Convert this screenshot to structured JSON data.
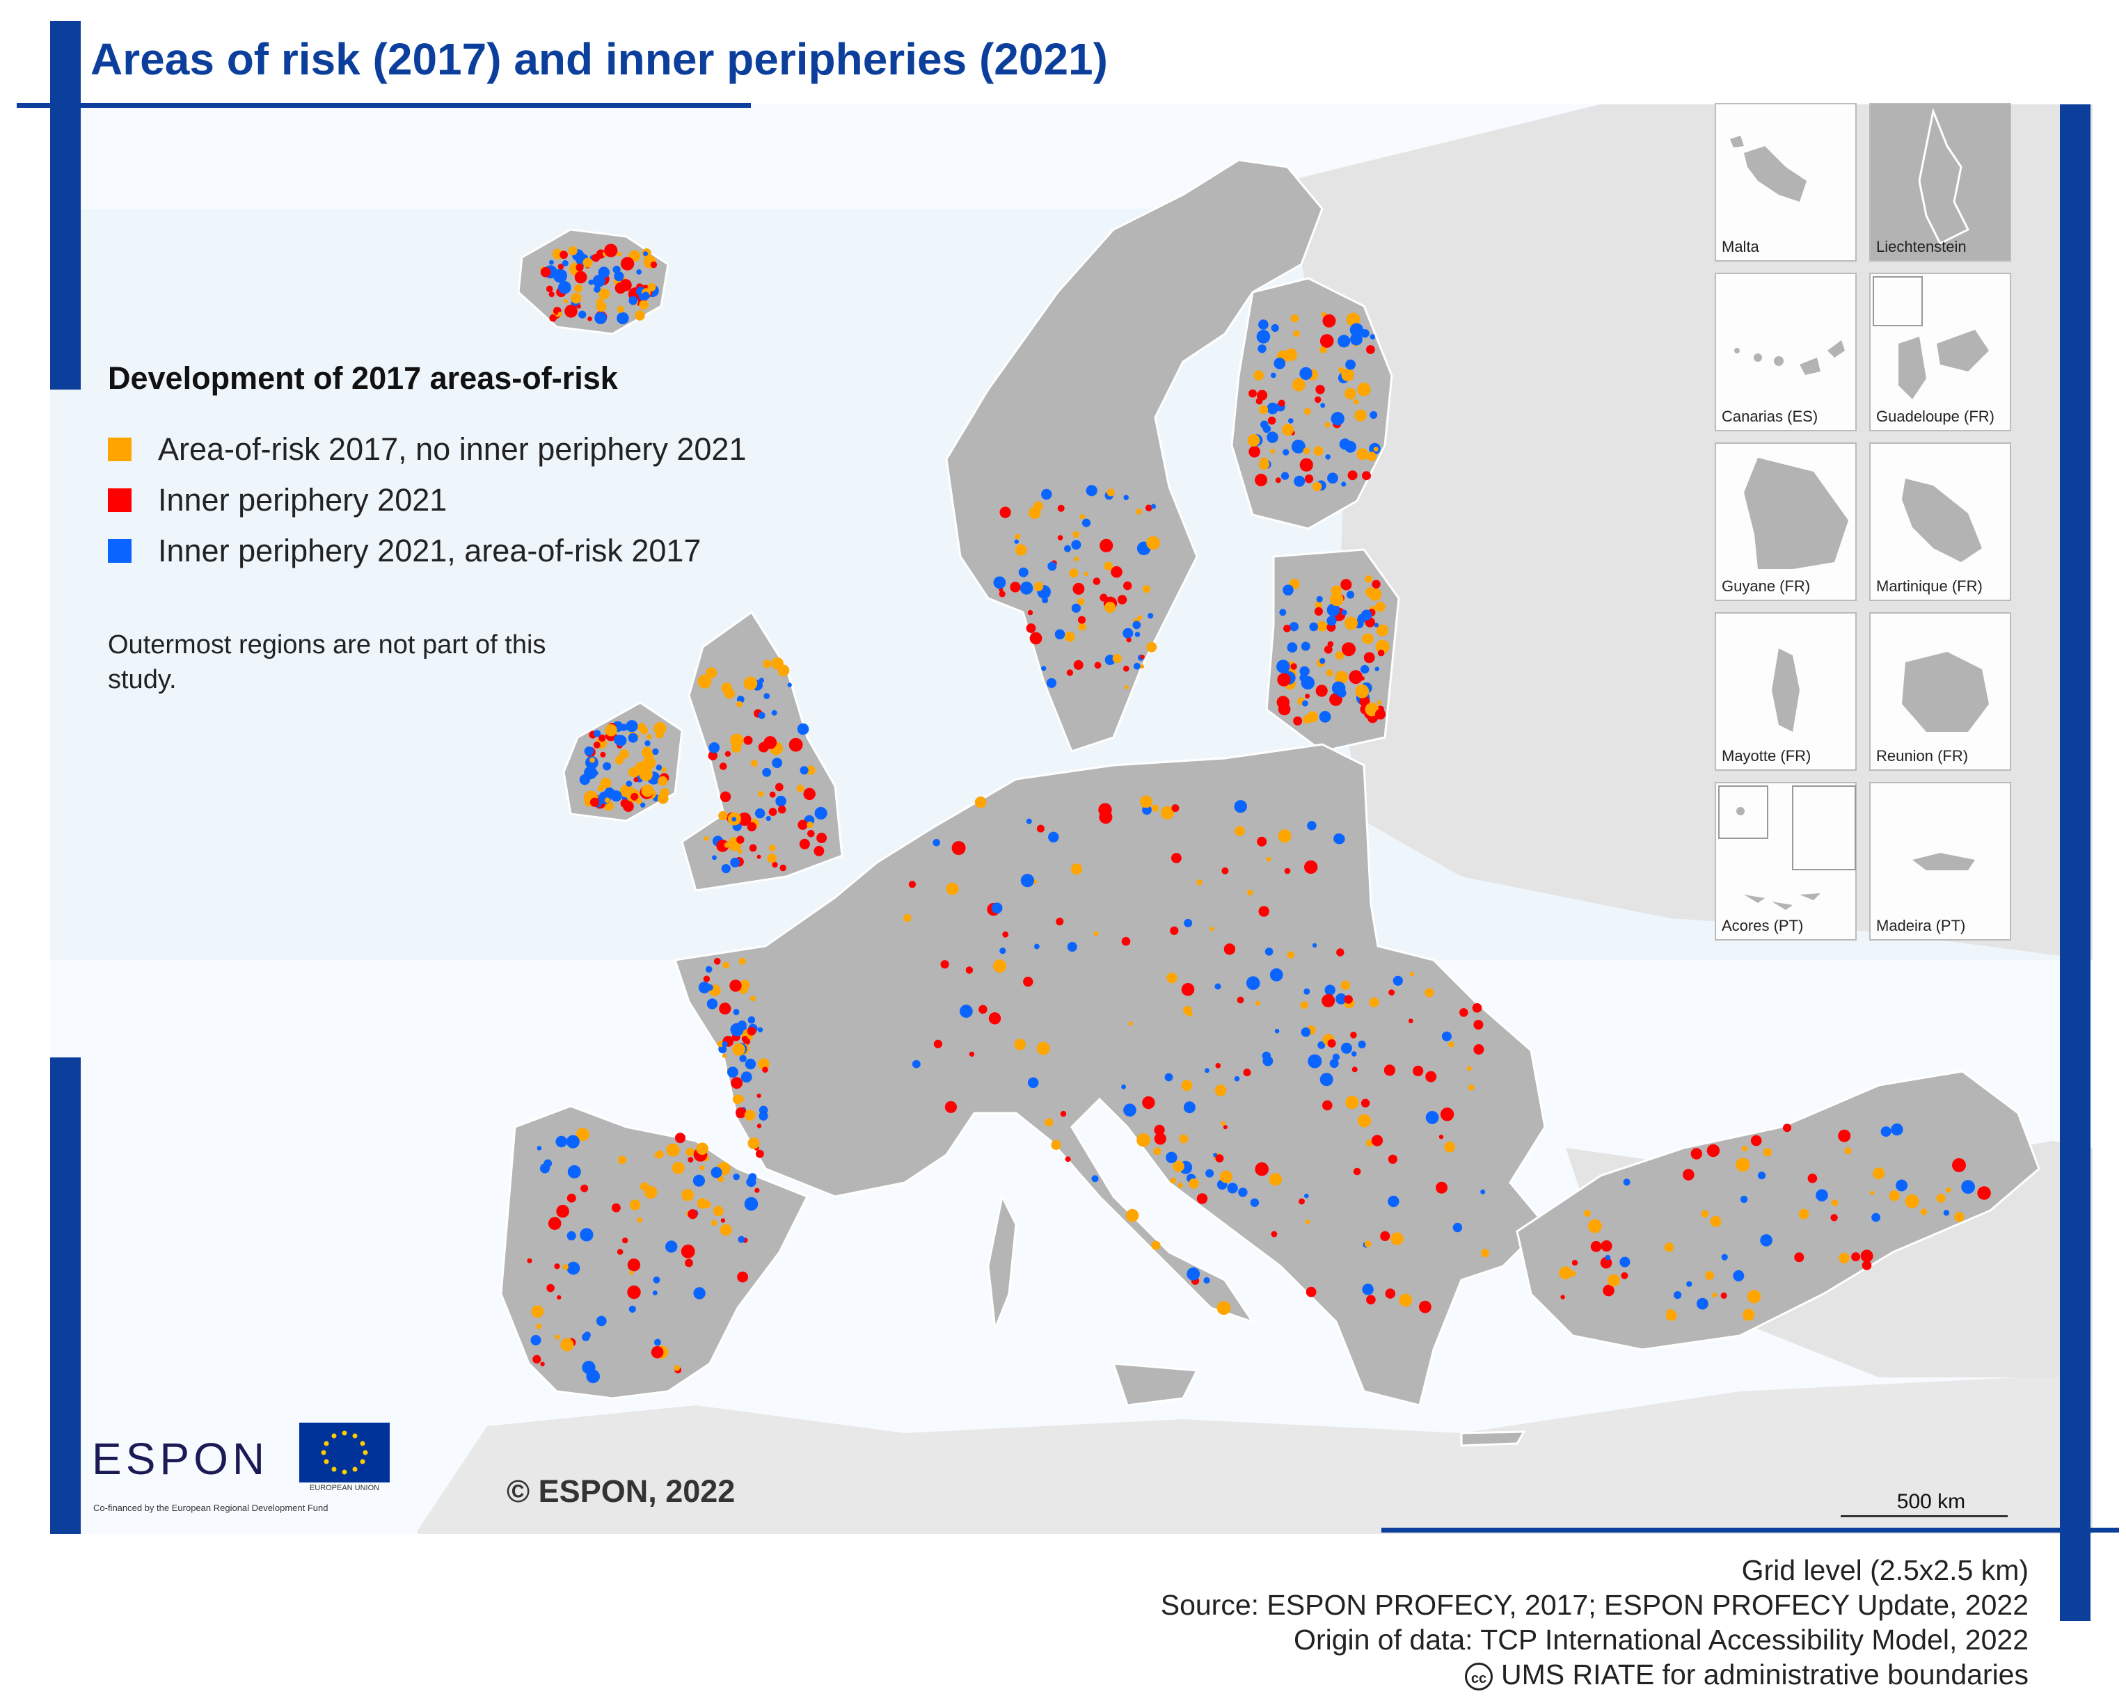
{
  "title": "Areas of risk (2017) and inner peripheries (2021)",
  "legend": {
    "heading": "Development of 2017 areas-of-risk",
    "items": [
      {
        "label": "Area-of-risk 2017, no inner periphery 2021",
        "color": "#ffa500"
      },
      {
        "label": "Inner periphery 2021",
        "color": "#ff0000"
      },
      {
        "label": "Inner periphery 2021, area-of-risk 2017",
        "color": "#0a64ff"
      }
    ]
  },
  "note": "Outermost regions are not part of this study.",
  "insets": [
    {
      "label": "Malta"
    },
    {
      "label": "Liechtenstein"
    },
    {
      "label": "Canarias (ES)"
    },
    {
      "label": "Guadeloupe (FR)"
    },
    {
      "label": "Guyane (FR)"
    },
    {
      "label": "Martinique (FR)"
    },
    {
      "label": "Mayotte (FR)"
    },
    {
      "label": "Reunion (FR)"
    },
    {
      "label": "Acores (PT)"
    },
    {
      "label": "Madeira (PT)"
    }
  ],
  "copyright": "© ESPON, 2022",
  "scale_label": "500 km",
  "logo": {
    "espon": "ESPON",
    "espon_sub": "Co-financed by the European Regional Development Fund",
    "eu_label": "EUROPEAN UNION"
  },
  "credits": {
    "line1": "Grid level (2.5x2.5 km)",
    "line2": "Source: ESPON PROFECY, 2017; ESPON PROFECY Update, 2022",
    "line3": "Origin of data: TCP International Accessibility Model, 2022",
    "line4": "UMS RIATE for administrative boundaries",
    "cc_icon": "cc"
  },
  "colors": {
    "frame_blue": "#0b3f9b",
    "land_gray": "#b5b5b5",
    "non_study_land": "#e6e6e6",
    "sea": "#f5faff"
  }
}
